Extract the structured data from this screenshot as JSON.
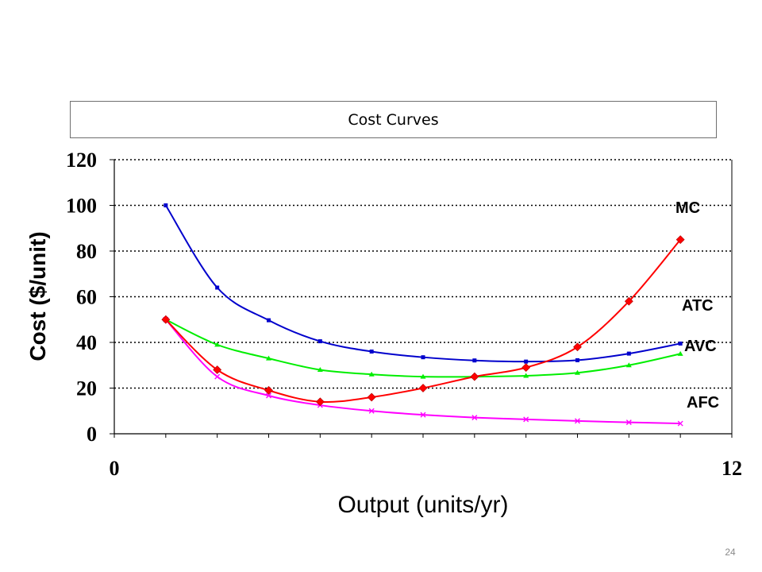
{
  "slide": {
    "number": "24"
  },
  "chart_data": {
    "type": "line",
    "title": "Cost Curves",
    "xlabel": "Output (units/yr)",
    "ylabel": "Cost ($/unit)",
    "xlim": [
      0,
      12
    ],
    "ylim": [
      0,
      120
    ],
    "x_ticks": [
      "0",
      "12"
    ],
    "y_ticks": [
      "0",
      "20",
      "40",
      "60",
      "80",
      "100",
      "120"
    ],
    "y_tick_values": [
      0,
      20,
      40,
      60,
      80,
      100,
      120
    ],
    "grid": "horizontal dotted",
    "x": [
      1,
      2,
      3,
      4,
      5,
      6,
      7,
      8,
      9,
      10,
      11
    ],
    "series": [
      {
        "name": "MC",
        "color": "#ff0000",
        "marker": "diamond",
        "values": [
          50,
          28,
          19,
          14,
          16,
          20,
          25,
          29,
          38,
          58,
          85
        ]
      },
      {
        "name": "ATC",
        "color": "#0000cc",
        "marker": "square",
        "values": [
          100,
          64,
          49.7,
          40.5,
          36,
          33.5,
          32.1,
          31.6,
          32.2,
          35.1,
          39.5
        ]
      },
      {
        "name": "AVC",
        "color": "#00ee00",
        "marker": "triangle",
        "values": [
          50,
          39,
          33,
          28,
          26,
          25,
          25,
          25.4,
          26.7,
          30,
          35
        ]
      },
      {
        "name": "AFC",
        "color": "#ff00ff",
        "marker": "x",
        "values": [
          50,
          25,
          16.7,
          12.5,
          10,
          8.3,
          7.1,
          6.3,
          5.6,
          5,
          4.5
        ]
      }
    ]
  }
}
